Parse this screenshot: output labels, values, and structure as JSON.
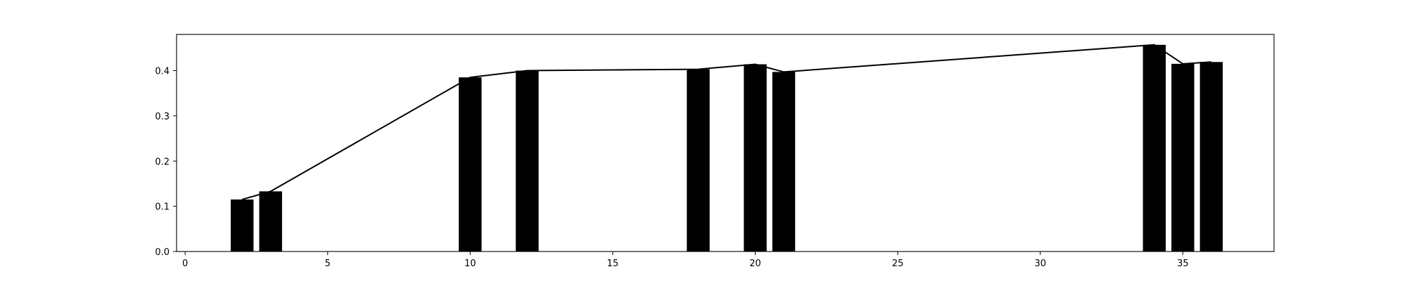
{
  "chart_data": {
    "type": "bar",
    "overlay": "line",
    "title": "",
    "xlabel": "",
    "ylabel": "",
    "xlim": [
      -0.3,
      38.2
    ],
    "ylim": [
      0,
      0.48
    ],
    "grid": false,
    "legend": "none",
    "colors": {
      "bar": "#000000",
      "line": "#000000",
      "axes": "#000000"
    },
    "x_ticks": [
      0,
      5,
      10,
      15,
      20,
      25,
      30,
      35
    ],
    "y_ticks": [
      0.0,
      0.1,
      0.2,
      0.3,
      0.4
    ],
    "x_tick_labels": [
      "0",
      "5",
      "10",
      "15",
      "20",
      "25",
      "30",
      "35"
    ],
    "y_tick_labels": [
      "0.0",
      "0.1",
      "0.2",
      "0.3",
      "0.4"
    ],
    "bar_width": 0.8,
    "points": [
      {
        "x": 2,
        "y": 0.115
      },
      {
        "x": 3,
        "y": 0.133
      },
      {
        "x": 10,
        "y": 0.385
      },
      {
        "x": 12,
        "y": 0.4
      },
      {
        "x": 18,
        "y": 0.403
      },
      {
        "x": 20,
        "y": 0.414
      },
      {
        "x": 21,
        "y": 0.397
      },
      {
        "x": 34,
        "y": 0.457
      },
      {
        "x": 35,
        "y": 0.415
      },
      {
        "x": 36,
        "y": 0.419
      }
    ]
  }
}
